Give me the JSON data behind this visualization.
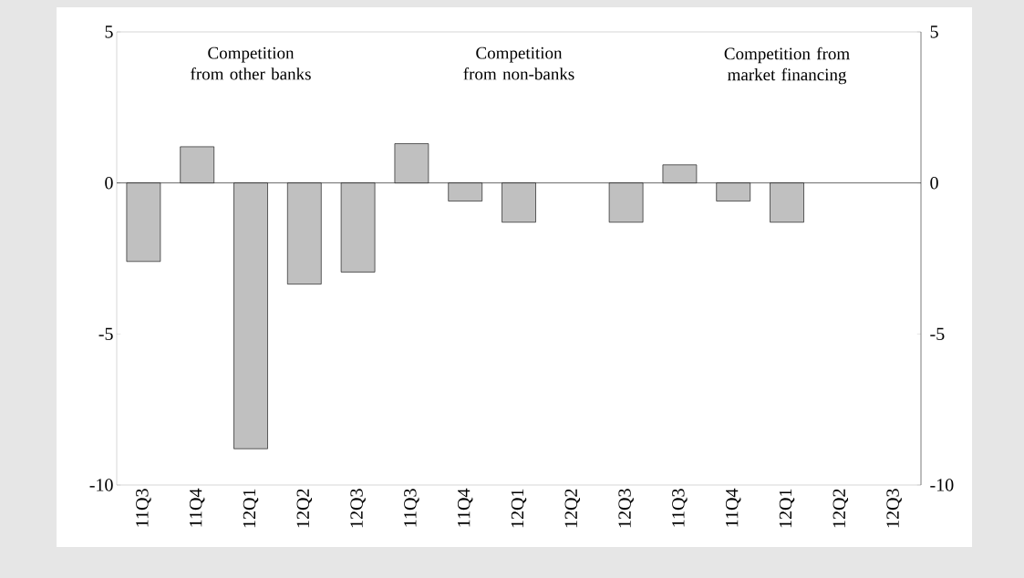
{
  "chart_data": {
    "type": "bar",
    "categories": [
      "11Q3",
      "11Q4",
      "12Q1",
      "12Q2",
      "12Q3",
      "11Q3",
      "11Q4",
      "12Q1",
      "12Q2",
      "12Q3",
      "11Q3",
      "11Q4",
      "12Q1",
      "12Q2",
      "12Q3"
    ],
    "values": [
      -2.6,
      1.2,
      -8.8,
      -3.35,
      -2.95,
      1.3,
      -0.6,
      -1.3,
      null,
      -1.3,
      0.6,
      -0.6,
      -1.3,
      null,
      null
    ],
    "color": "#c0c0c0",
    "ylim": [
      -10,
      5
    ],
    "yticks": [
      -10,
      -5,
      0,
      5
    ],
    "y2lim": [
      -10,
      5
    ],
    "y2ticks": [
      -10,
      -5,
      0,
      5
    ],
    "annotations": [
      "Competition from other banks",
      "Competition from non-banks",
      "Competition from market financing"
    ]
  }
}
